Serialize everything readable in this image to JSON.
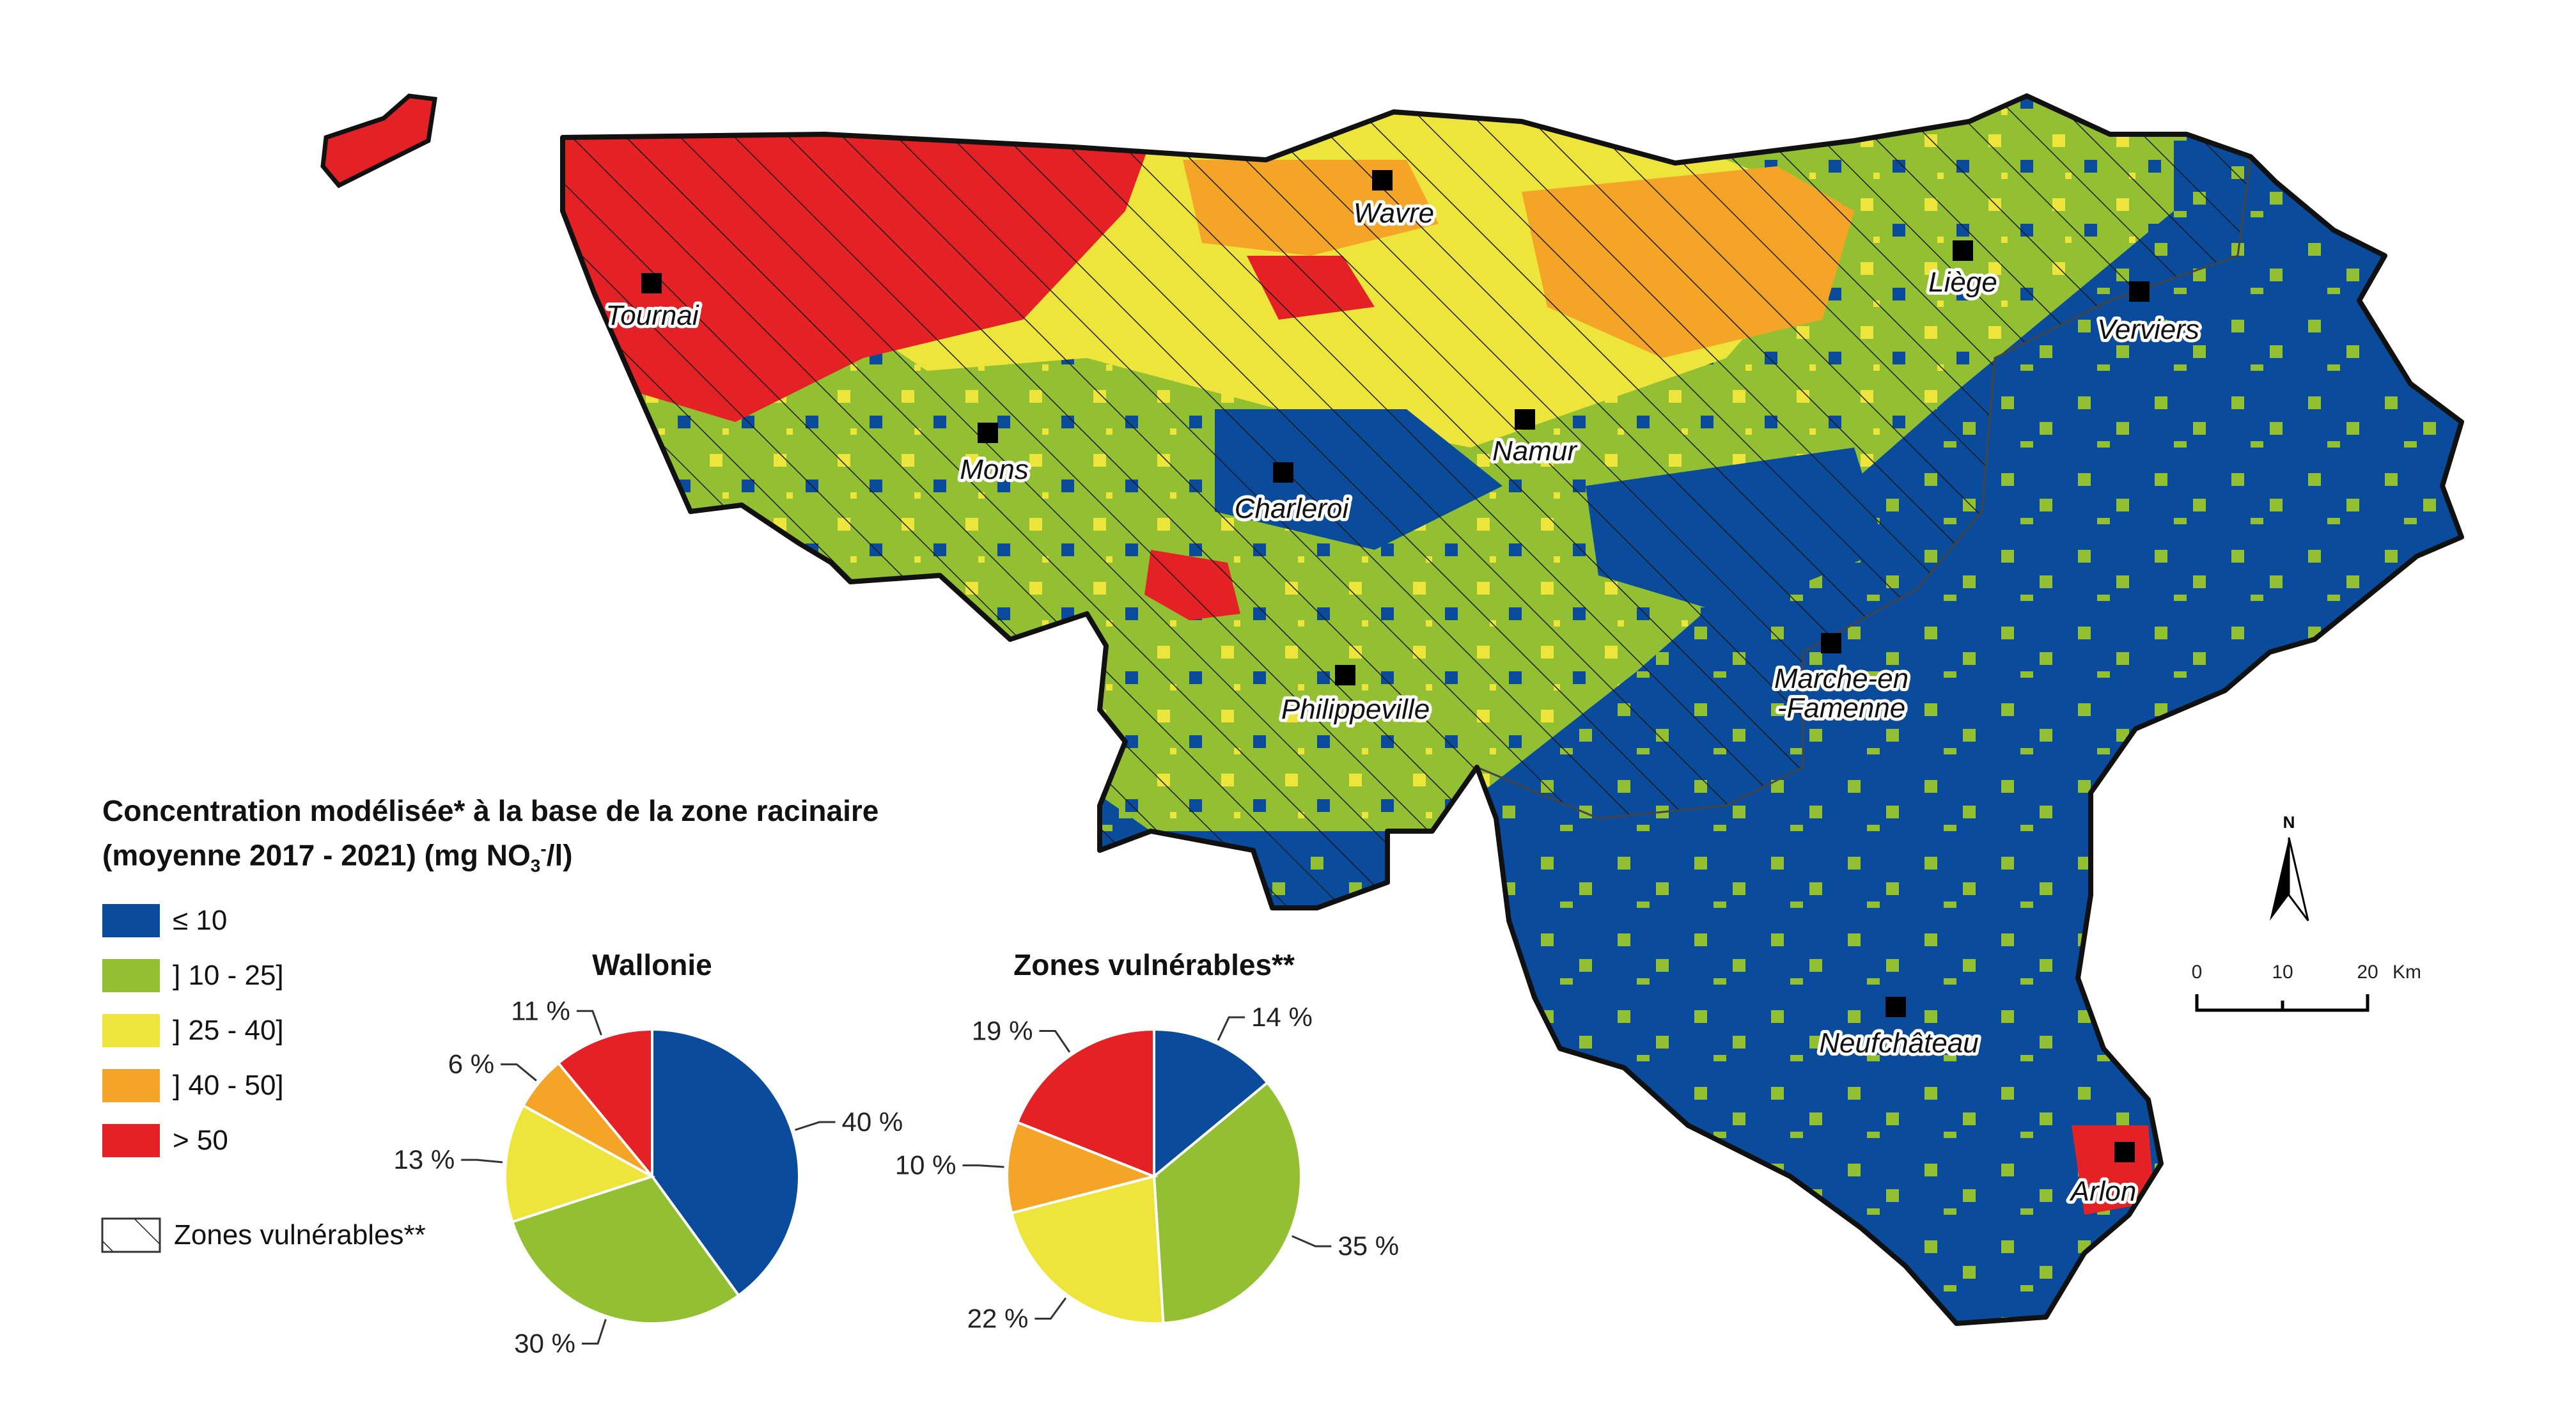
{
  "legend": {
    "title_line1": "Concentration modélisée* à la base de la zone racinaire",
    "title_line2_prefix": "(moyenne 2017 - 2021) (mg NO",
    "title_line2_sub": "3",
    "title_line2_sup": "-",
    "title_line2_suffix": "/l)",
    "classes": [
      {
        "label": "≤ 10",
        "color": "#0b4b9c"
      },
      {
        "label": "] 10 - 25]",
        "color": "#93c033"
      },
      {
        "label": "] 25 - 40]",
        "color": "#ede53c"
      },
      {
        "label": "] 40 - 50]",
        "color": "#f4a528"
      },
      {
        "label": "> 50",
        "color": "#e42225"
      }
    ],
    "hatch_label": "Zones vulnérables**"
  },
  "cities": [
    "Tournai",
    "Wavre",
    "Liège",
    "Verviers",
    "Mons",
    "Charleroi",
    "Namur",
    "Philippeville",
    "Marche-en",
    "-Famenne",
    "Neufchâteau",
    "Arlon"
  ],
  "scale_bar": {
    "ticks": [
      "0",
      "10",
      "20"
    ],
    "unit": "Km"
  },
  "north_arrow": "N",
  "chart_data": [
    {
      "type": "pie",
      "title": "Wallonie",
      "categories": [
        "≤ 10",
        "] 10 - 25]",
        "] 25 - 40]",
        "] 40 - 50]",
        "> 50"
      ],
      "values": [
        40,
        30,
        13,
        6,
        11
      ],
      "labels": [
        "40 %",
        "30 %",
        "13 %",
        "6 %",
        "11 %"
      ],
      "colors": [
        "#0b4b9c",
        "#93c033",
        "#ede53c",
        "#f4a528",
        "#e42225"
      ]
    },
    {
      "type": "pie",
      "title": "Zones vulnérables**",
      "categories": [
        "≤ 10",
        "] 10 - 25]",
        "] 25 - 40]",
        "] 40 - 50]",
        "> 50"
      ],
      "values": [
        14,
        35,
        22,
        10,
        19
      ],
      "labels": [
        "14 %",
        "35 %",
        "22 %",
        "10 %",
        "19 %"
      ],
      "colors": [
        "#0b4b9c",
        "#93c033",
        "#ede53c",
        "#f4a528",
        "#e42225"
      ]
    }
  ]
}
